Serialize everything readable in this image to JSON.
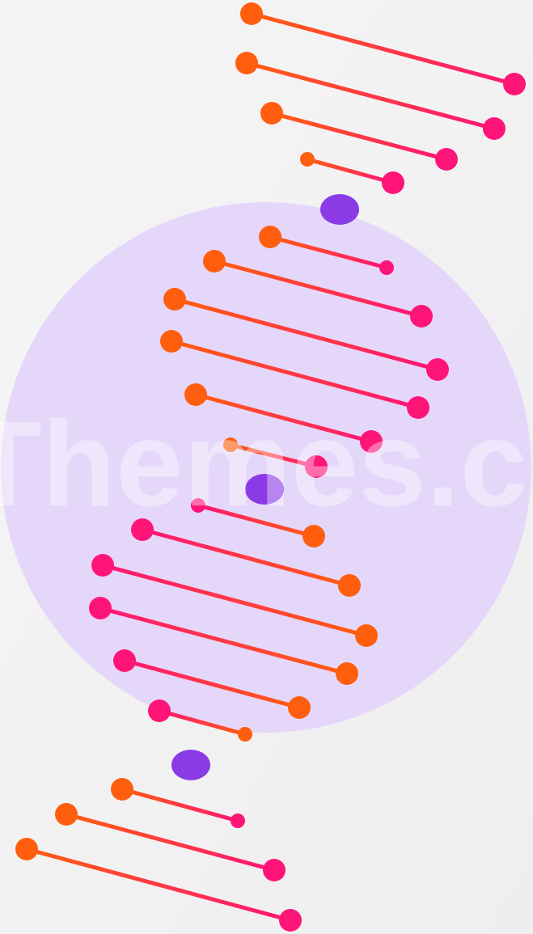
{
  "watermark": "Themes.c"
}
